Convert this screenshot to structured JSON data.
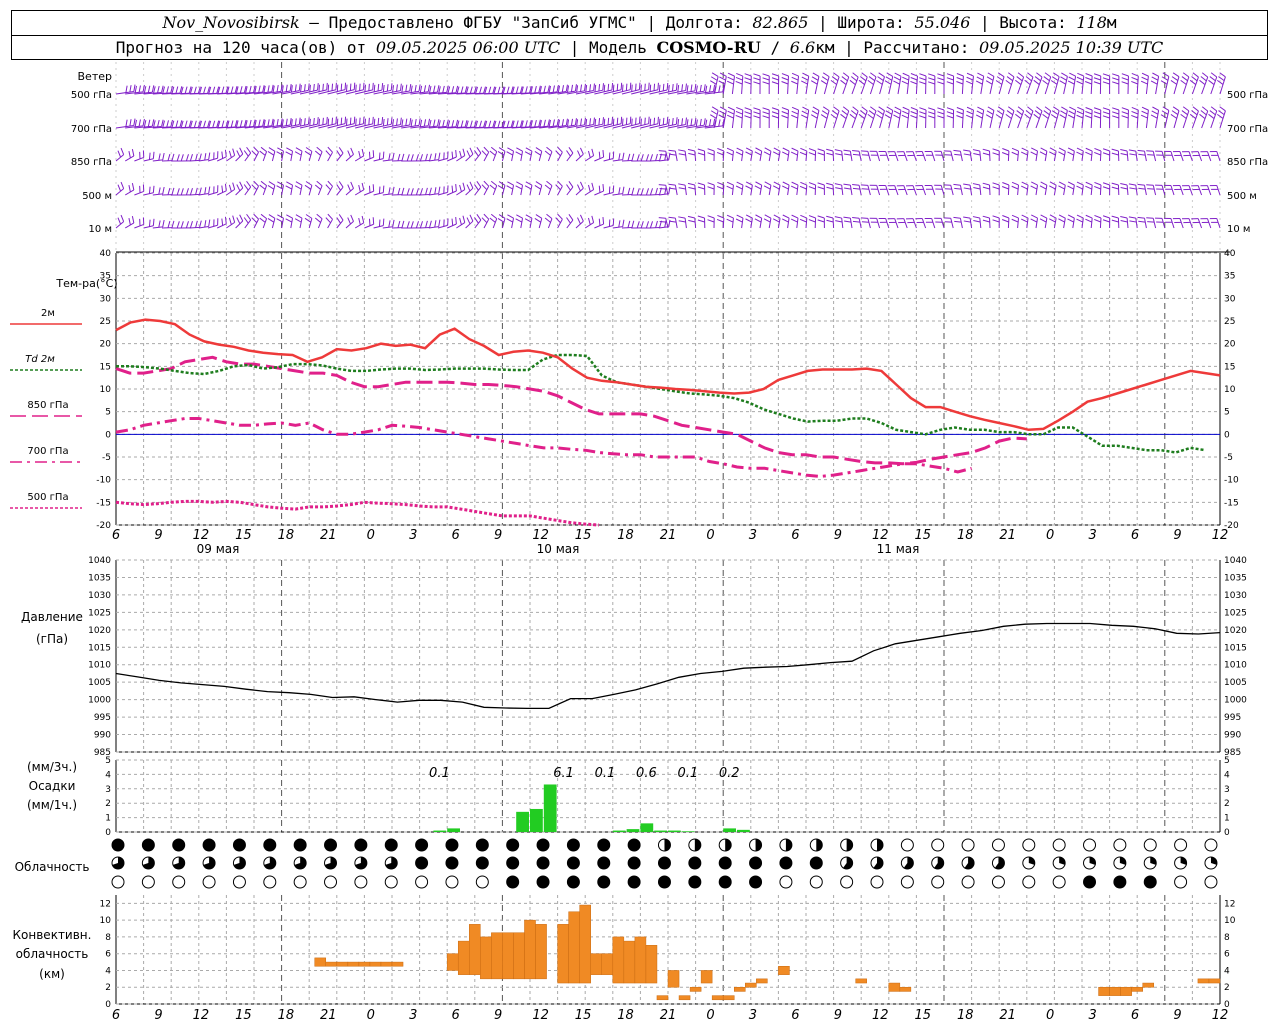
{
  "header": {
    "station": "Nov_Novosibirsk",
    "provided": "Предоставлено ФГБУ \"ЗапСиб УГМС\"",
    "lon_label": "Долгота:",
    "lon": "82.865",
    "lat_label": "Широта:",
    "lat": "55.046",
    "alt_label": "Высота:",
    "alt": "118",
    "alt_unit": "м",
    "forecast_prefix": "Прогноз на 120 часа(ов) от",
    "forecast_time": "09.05.2025 06:00 UTC",
    "model_label": "Модель",
    "model": "COSMO-RU",
    "model_res": "6.6",
    "model_res_unit": "км",
    "calc_label": "Рассчитано:",
    "calc_time": "09.05.2025 10:39 UTC"
  },
  "labels": {
    "wind": "Ветер",
    "wind_levels": [
      "500 гПа",
      "700 гПа",
      "850 гПа",
      "500 м",
      "10 м"
    ],
    "temp_title": "Тем-ра(°C)",
    "legend": [
      "2м",
      "Td 2м",
      "850 гПа",
      "700 гПа",
      "500 гПа"
    ],
    "pressure": [
      "Давление",
      "(гПа)"
    ],
    "precip": [
      "(мм/3ч.)",
      "Осадки",
      "(мм/1ч.)"
    ],
    "cloud": "Облачность",
    "conv": [
      "Конвективн.",
      "облачность",
      "(км)"
    ],
    "days": [
      "09 мая",
      "10 мая",
      "11 мая"
    ]
  },
  "chart_data": {
    "type": "meteogram",
    "hours": [
      "6",
      "9",
      "12",
      "15",
      "18",
      "21",
      "0",
      "3",
      "6",
      "9",
      "12",
      "15",
      "18",
      "21",
      "0",
      "3",
      "6",
      "9",
      "12",
      "15",
      "18",
      "21",
      "0",
      "3",
      "6",
      "9",
      "12"
    ],
    "temperature": {
      "ylim": [
        -20,
        40
      ],
      "ticks": [
        40,
        35,
        30,
        25,
        20,
        15,
        10,
        5,
        0,
        -5,
        -10,
        -15,
        -20
      ],
      "t2m": [
        23,
        24.7,
        25.3,
        25,
        24.3,
        22,
        20.5,
        19.8,
        19.3,
        18.5,
        18,
        17.7,
        17.5,
        16,
        17,
        18.8,
        18.5,
        19,
        20,
        19.5,
        19.8,
        19,
        22,
        23.3,
        21,
        19.5,
        17.5,
        18.2,
        18.5,
        18,
        17,
        14.5,
        12.5,
        11.8,
        11.5,
        11,
        10.5,
        10.3,
        10,
        9.8,
        9.5,
        9.2,
        9,
        9.2,
        10,
        12,
        13,
        14,
        14.3,
        14.3,
        14.3,
        14.5,
        14,
        11,
        8,
        6,
        6,
        5,
        4,
        3.2,
        2.5,
        1.8,
        1,
        1.2,
        3,
        5,
        7.2,
        8,
        9,
        10,
        11,
        12,
        13,
        14,
        13.5,
        13
      ],
      "td2m": [
        15,
        15,
        14.8,
        14.5,
        14,
        13.5,
        13.3,
        14,
        15,
        15.3,
        14.5,
        14.8,
        15.5,
        15.5,
        15.2,
        14.5,
        14,
        14,
        14.3,
        14.5,
        14.5,
        14.2,
        14.3,
        14.5,
        14.5,
        14.5,
        14.3,
        14.2,
        14.2,
        16.5,
        17.5,
        17.5,
        17.3,
        13,
        11.5,
        11,
        10.5,
        10,
        9.5,
        9,
        8.8,
        8.5,
        8,
        7,
        5.5,
        4.5,
        3.5,
        2.8,
        3,
        3,
        3.5,
        3.5,
        2.5,
        1,
        0.5,
        0,
        1,
        1.5,
        1,
        1,
        0.5,
        0.5,
        0,
        0,
        1.5,
        1.5,
        -0.5,
        -2.5,
        -2.5,
        -3,
        -3.5,
        -3.5,
        -4,
        -3,
        -3.5
      ],
      "t850": [
        14.5,
        13.5,
        13.5,
        14,
        14.5,
        16,
        16.5,
        17,
        16,
        15.5,
        15.5,
        15,
        14.5,
        14,
        13.5,
        13.5,
        13,
        11.5,
        10.5,
        10.5,
        11,
        11.5,
        11.5,
        11.5,
        11.5,
        11.3,
        11,
        11,
        10.8,
        10.5,
        10,
        9.5,
        8.5,
        7,
        5.5,
        4.5,
        4.5,
        4.5,
        4.5,
        4,
        3,
        2,
        1.5,
        1,
        0.5,
        0,
        -1.5,
        -3,
        -4,
        -4.5,
        -4.5,
        -5,
        -5,
        -5.5,
        -6,
        -6.3,
        -6.3,
        -6.5,
        -6.2,
        -5.5,
        -5,
        -4.5,
        -4,
        -3,
        -1.5,
        -0.8,
        -1
      ],
      "t700": [
        0.5,
        1,
        2,
        2.5,
        3,
        3.5,
        3.5,
        3,
        2.5,
        2,
        2,
        2.3,
        2.5,
        2,
        2.5,
        1,
        0,
        0,
        0.5,
        1,
        2,
        1.8,
        1.5,
        1,
        0.5,
        0,
        -0.5,
        -1,
        -1.5,
        -2,
        -2.5,
        -3,
        -3,
        -3.3,
        -3.5,
        -4,
        -4.3,
        -4.5,
        -4.5,
        -5,
        -5,
        -5,
        -5,
        -6,
        -6.5,
        -7.2,
        -7.5,
        -7.5,
        -8,
        -8.5,
        -9,
        -9.3,
        -9,
        -8.5,
        -8,
        -7.5,
        -7,
        -6.5,
        -6.5,
        -7,
        -7.5,
        -8.3,
        -7.5
      ],
      "t500": [
        -15,
        -15.3,
        -15.5,
        -15.3,
        -15,
        -14.8,
        -14.8,
        -15,
        -14.8,
        -15,
        -15.5,
        -16,
        -16.3,
        -16.5,
        -16,
        -16,
        -15.8,
        -15.5,
        -15,
        -15.2,
        -15.3,
        -15.5,
        -15.8,
        -16,
        -16,
        -16.5,
        -17,
        -17.5,
        -18,
        -18,
        -18,
        -18.5,
        -19,
        -19.5,
        -19.8,
        -20
      ]
    },
    "pressure": {
      "ylim": [
        985,
        1040
      ],
      "ticks": [
        1040,
        1035,
        1030,
        1025,
        1020,
        1015,
        1010,
        1005,
        1000,
        995,
        990,
        985
      ],
      "values": [
        1007.5,
        1006.5,
        1005.5,
        1004.8,
        1004.3,
        1003.8,
        1003,
        1002.3,
        1002,
        1001.5,
        1000.6,
        1000.8,
        1000,
        999.3,
        999.8,
        999.8,
        999.3,
        997.8,
        997.6,
        997.5,
        997.5,
        1000.3,
        1000.3,
        1001.5,
        1002.8,
        1004.5,
        1006.4,
        1007.5,
        1008.1,
        1009,
        1009.3,
        1009.5,
        1010,
        1010.6,
        1011,
        1014,
        1016,
        1017,
        1018,
        1019,
        1019.8,
        1021,
        1021.6,
        1021.8,
        1021.8,
        1021.8,
        1021.3,
        1021,
        1020.3,
        1019,
        1018.8,
        1019.2
      ]
    },
    "precipitation": {
      "ylim": [
        0,
        5
      ],
      "hourly_bars": [
        {
          "t": 23,
          "v": 0.1
        },
        {
          "t": 24,
          "v": 0.25
        },
        {
          "t": 29,
          "v": 1.4
        },
        {
          "t": 30,
          "v": 1.6
        },
        {
          "t": 31,
          "v": 3.3
        },
        {
          "t": 36,
          "v": 0.1
        },
        {
          "t": 37,
          "v": 0.2
        },
        {
          "t": 38,
          "v": 0.6
        },
        {
          "t": 39,
          "v": 0.1
        },
        {
          "t": 40,
          "v": 0.1
        },
        {
          "t": 41,
          "v": 0.05
        },
        {
          "t": 44,
          "v": 0.25
        },
        {
          "t": 45,
          "v": 0.15
        }
      ],
      "sums_3h": [
        {
          "t": 23,
          "label": "0.1"
        },
        {
          "t": 32,
          "label": "6.1"
        },
        {
          "t": 35,
          "label": "0.1"
        },
        {
          "t": 38,
          "label": "0.6"
        },
        {
          "t": 41,
          "label": "0.1"
        },
        {
          "t": 44,
          "label": "0.2"
        }
      ]
    },
    "convective_cloud": {
      "ylim": [
        0,
        13
      ],
      "ticks": [
        12,
        10,
        8,
        6,
        4,
        2,
        0
      ],
      "layers": [
        [
          18,
          19,
          4.5,
          5.5
        ],
        [
          19,
          20,
          4.5,
          5
        ],
        [
          20,
          21,
          4.5,
          5
        ],
        [
          21,
          22,
          4.5,
          5
        ],
        [
          22,
          23,
          4.5,
          5
        ],
        [
          23,
          24,
          4.5,
          5
        ],
        [
          24,
          25,
          4.5,
          5
        ],
        [
          25,
          26,
          4.5,
          5
        ],
        [
          30,
          31,
          4,
          6
        ],
        [
          31,
          32,
          3.5,
          7.5
        ],
        [
          32,
          33,
          3.5,
          9.5
        ],
        [
          33,
          34,
          3,
          8
        ],
        [
          34,
          35,
          3,
          8.5
        ],
        [
          35,
          36,
          3,
          8.5
        ],
        [
          36,
          37,
          3,
          8.5
        ],
        [
          37,
          38,
          3,
          10
        ],
        [
          38,
          39,
          3,
          9.5
        ],
        [
          40,
          41,
          2.5,
          9.5
        ],
        [
          41,
          42,
          2.5,
          11
        ],
        [
          42,
          43,
          2.5,
          11.8
        ],
        [
          43,
          44,
          3.5,
          6
        ],
        [
          44,
          45,
          3.5,
          6
        ],
        [
          45,
          46,
          2.5,
          8
        ],
        [
          46,
          47,
          2.5,
          7.5
        ],
        [
          47,
          48,
          2.5,
          8
        ],
        [
          48,
          49,
          2.5,
          7
        ],
        [
          49,
          50,
          0.5,
          1
        ],
        [
          50,
          51,
          2,
          4
        ],
        [
          51,
          52,
          0.5,
          1
        ],
        [
          52,
          53,
          1.5,
          2
        ],
        [
          53,
          54,
          2.5,
          4
        ],
        [
          54,
          55,
          0.5,
          1
        ],
        [
          55,
          56,
          0.5,
          1
        ],
        [
          56,
          57,
          1.5,
          2
        ],
        [
          57,
          58,
          2,
          2.5
        ],
        [
          58,
          59,
          2.5,
          3
        ],
        [
          60,
          61,
          3.5,
          4.5
        ],
        [
          67,
          68,
          2.5,
          3
        ],
        [
          70,
          71,
          1.5,
          2.5
        ],
        [
          71,
          72,
          1.5,
          2
        ],
        [
          89,
          90,
          1,
          2
        ],
        [
          90,
          91,
          1,
          2
        ],
        [
          91,
          92,
          1,
          2
        ],
        [
          92,
          93,
          1.5,
          2
        ],
        [
          93,
          94,
          2,
          2.5
        ],
        [
          98,
          99,
          2.5,
          3
        ],
        [
          99,
          100,
          2.5,
          3
        ]
      ]
    },
    "colors": {
      "t2m": "#ee3a3a",
      "td2m": "#1e7d1e",
      "t850": "#e0208a",
      "t700": "#e0208a",
      "t500": "#e0208a",
      "zero": "#0000cc",
      "wind": "#8020c8",
      "precip": "#22cc22",
      "conv": "#f08a24",
      "pressure": "#000000"
    }
  }
}
